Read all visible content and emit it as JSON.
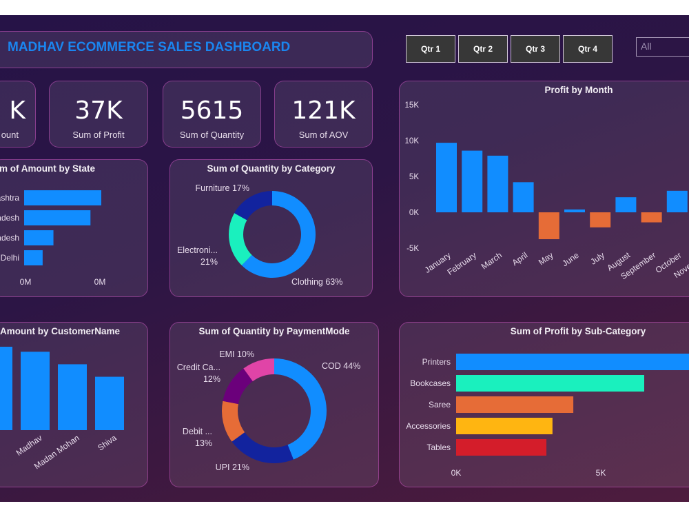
{
  "header": {
    "title": "MADHAV ECOMMERCE SALES DASHBOARD"
  },
  "filters": {
    "quarters": [
      "Qtr 1",
      "Qtr 2",
      "Qtr 3",
      "Qtr 4"
    ],
    "slicer_value": "All"
  },
  "kpis": [
    {
      "value": "K",
      "label": "ount"
    },
    {
      "value": "37K",
      "label": "Sum of Profit"
    },
    {
      "value": "5615",
      "label": "Sum of Quantity"
    },
    {
      "value": "121K",
      "label": "Sum of AOV"
    }
  ],
  "colors": {
    "blue": "#118DFF",
    "orange": "#E66C37",
    "teal": "#1AF0BE",
    "navy": "#12239E",
    "purple": "#6B007B",
    "pink": "#E044A7",
    "yellow": "#FFB511",
    "red": "#D41D2A",
    "title": "#1A86F0"
  },
  "chart_data": [
    {
      "id": "state",
      "type": "bar",
      "orientation": "horizontal",
      "title": "um of Amount by State",
      "categories": [
        "ashtra",
        "adesh",
        "adesh",
        "Delhi"
      ],
      "values": [
        1.0,
        0.86,
        0.38,
        0.24
      ],
      "x_tick_labels": [
        "0M",
        "0M"
      ]
    },
    {
      "id": "category",
      "type": "pie",
      "donut": true,
      "title": "Sum of Quantity by Category",
      "slices": [
        {
          "name": "Clothing",
          "label": "Clothing 63%",
          "value": 63,
          "color": "#118DFF"
        },
        {
          "name": "Electronics",
          "label": "Electroni...",
          "label2": "21%",
          "value": 21,
          "color": "#1AF0BE"
        },
        {
          "name": "Furniture",
          "label": "Furniture 17%",
          "value": 17,
          "color": "#12239E"
        }
      ]
    },
    {
      "id": "month",
      "type": "bar",
      "title": "Profit by Month",
      "categories": [
        "January",
        "February",
        "March",
        "April",
        "May",
        "June",
        "July",
        "August",
        "September",
        "October",
        "November"
      ],
      "values": [
        9700,
        8600,
        7900,
        4200,
        -3750,
        400,
        -2100,
        2100,
        -1400,
        3000,
        null
      ],
      "ylim": [
        -5000,
        15000
      ],
      "y_ticks": [
        15000,
        10000,
        5000,
        0,
        -5000
      ],
      "y_tick_labels": [
        "15K",
        "10K",
        "5K",
        "0K",
        "-5K"
      ],
      "positive_color": "#118DFF",
      "negative_color": "#E66C37"
    },
    {
      "id": "customer",
      "type": "bar",
      "title": "f Amount by CustomerName",
      "categories": [
        "",
        "Madhav",
        "Madan Mohan",
        "Shiva"
      ],
      "values": [
        1.0,
        0.94,
        0.79,
        0.64
      ]
    },
    {
      "id": "payment",
      "type": "pie",
      "donut": true,
      "title": "Sum of Quantity by PaymentMode",
      "slices": [
        {
          "name": "COD",
          "label": "COD 44%",
          "value": 44,
          "color": "#118DFF"
        },
        {
          "name": "UPI",
          "label": "UPI 21%",
          "value": 21,
          "color": "#12239E"
        },
        {
          "name": "Debit Card",
          "label": "Debit ...",
          "label2": "13%",
          "value": 13,
          "color": "#E66C37"
        },
        {
          "name": "Credit Card",
          "label": "Credit Ca...",
          "label2": "12%",
          "value": 12,
          "color": "#6B007B"
        },
        {
          "name": "EMI",
          "label": "EMI 10%",
          "value": 10,
          "color": "#E044A7"
        }
      ]
    },
    {
      "id": "subcategory",
      "type": "bar",
      "orientation": "horizontal",
      "title": "Sum of Profit by Sub-Category",
      "categories": [
        "Printers",
        "Bookcases",
        "Saree",
        "Accessories",
        "Tables"
      ],
      "values": [
        8500,
        6500,
        4050,
        3330,
        3120
      ],
      "colors": [
        "#118DFF",
        "#1AF0BE",
        "#E66C37",
        "#FFB511",
        "#D41D2A"
      ],
      "x_ticks": [
        0,
        5000
      ],
      "x_tick_labels": [
        "0K",
        "5K"
      ]
    }
  ]
}
